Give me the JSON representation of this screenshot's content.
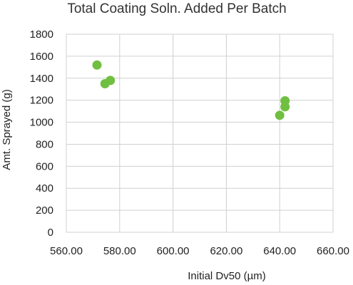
{
  "chart_data": {
    "type": "scatter",
    "title": "Total Coating Soln. Added Per Batch",
    "xlabel": "Initial Dv50 (µm)",
    "ylabel": "Amt. Sprayed (g)",
    "xlim": [
      560,
      660
    ],
    "ylim": [
      0,
      1800
    ],
    "x_ticks": [
      "560.00",
      "580.00",
      "600.00",
      "620.00",
      "640.00",
      "660.00"
    ],
    "y_ticks": [
      "0",
      "200",
      "400",
      "600",
      "800",
      "1000",
      "1200",
      "1400",
      "1600",
      "1800"
    ],
    "grid": true,
    "series": [
      {
        "color": "#70bf41",
        "points": [
          {
            "x": 571.5,
            "y": 1520
          },
          {
            "x": 574.5,
            "y": 1350
          },
          {
            "x": 576.5,
            "y": 1380
          },
          {
            "x": 640.0,
            "y": 1063
          },
          {
            "x": 642.0,
            "y": 1195
          },
          {
            "x": 642.0,
            "y": 1140
          }
        ]
      }
    ]
  }
}
